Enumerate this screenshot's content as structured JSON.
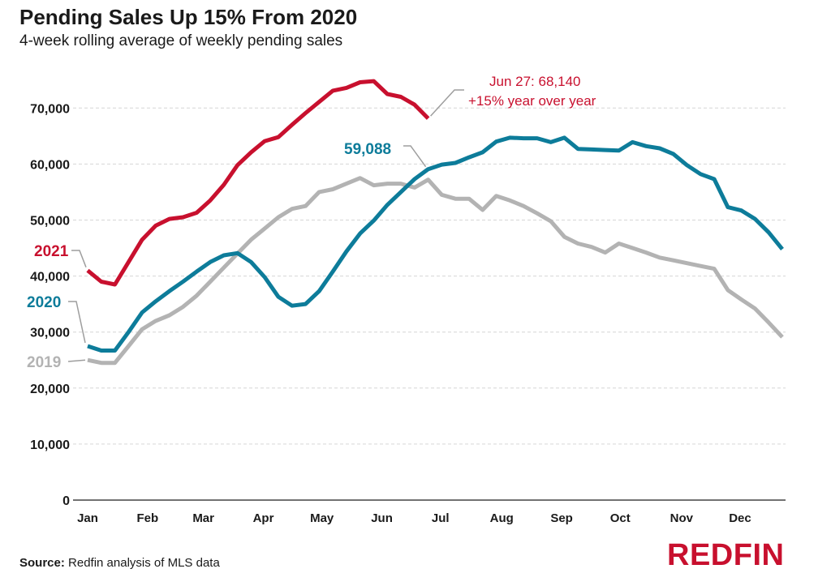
{
  "chart_data": {
    "type": "line",
    "title": "Pending Sales Up 15% From 2020",
    "subtitle": "4-week rolling average of weekly pending sales",
    "xlabel": "",
    "ylabel": "",
    "ylim": [
      0,
      78000
    ],
    "yticks": [
      0,
      10000,
      20000,
      30000,
      40000,
      50000,
      60000,
      70000
    ],
    "ytick_labels": [
      "0",
      "10,000",
      "20,000",
      "30,000",
      "40,000",
      "50,000",
      "60,000",
      "70,000"
    ],
    "x_weeks": 52,
    "months": [
      {
        "label": "Jan",
        "week": 0
      },
      {
        "label": "Feb",
        "week": 4.4
      },
      {
        "label": "Mar",
        "week": 8.5
      },
      {
        "label": "Apr",
        "week": 12.9
      },
      {
        "label": "May",
        "week": 17.2
      },
      {
        "label": "Jun",
        "week": 21.6
      },
      {
        "label": "Jul",
        "week": 25.9
      },
      {
        "label": "Aug",
        "week": 30.4
      },
      {
        "label": "Sep",
        "week": 34.8
      },
      {
        "label": "Oct",
        "week": 39.1
      },
      {
        "label": "Nov",
        "week": 43.6
      },
      {
        "label": "Dec",
        "week": 47.9
      }
    ],
    "series": [
      {
        "name": "2019",
        "color": "#b3b3b3",
        "values": [
          25000,
          24500,
          24500,
          27500,
          30500,
          32000,
          33000,
          34500,
          36500,
          39000,
          41500,
          44000,
          46500,
          48500,
          50500,
          52000,
          52500,
          55000,
          55500,
          56500,
          57500,
          56200,
          56500,
          56500,
          55800,
          57200,
          54500,
          53800,
          53800,
          51800,
          54300,
          53500,
          52500,
          51200,
          49800,
          47000,
          45800,
          45200,
          44200,
          45800,
          45000,
          44200,
          43300,
          42800,
          42300,
          41800,
          41300,
          37500,
          35800,
          34200,
          31700,
          29100
        ]
      },
      {
        "name": "2020",
        "color": "#0d7c9a",
        "values": [
          27500,
          26700,
          26700,
          30000,
          33500,
          35500,
          37300,
          39000,
          40800,
          42500,
          43700,
          44100,
          42500,
          39800,
          36300,
          34700,
          35000,
          37300,
          40800,
          44400,
          47600,
          49900,
          52700,
          55000,
          57300,
          59088,
          59900,
          60200,
          61200,
          62100,
          64000,
          64700,
          64600,
          64600,
          63900,
          64700,
          62700,
          62600,
          62500,
          62400,
          63900,
          63200,
          62800,
          61800,
          59800,
          58200,
          57300,
          52300,
          51700,
          50200,
          47800,
          44800
        ]
      },
      {
        "name": "2021",
        "color": "#c8102e",
        "values": [
          41000,
          39000,
          38500,
          42500,
          46500,
          49000,
          50200,
          50500,
          51300,
          53500,
          56300,
          59800,
          62100,
          64100,
          64800,
          67000,
          69100,
          71100,
          73100,
          73600,
          74600,
          74800,
          72500,
          72000,
          70600,
          68140
        ]
      }
    ],
    "series_labels": {
      "2021": "2021",
      "2020": "2020",
      "2019": "2019"
    },
    "annotations": {
      "jun27_line1": "Jun 27: 68,140",
      "jun27_line2": "+15% year over year",
      "peak_2020": "59,088"
    }
  },
  "footer": {
    "source_label": "Source:",
    "source_text": " Redfin analysis of MLS data",
    "brand": "REDFIN"
  }
}
